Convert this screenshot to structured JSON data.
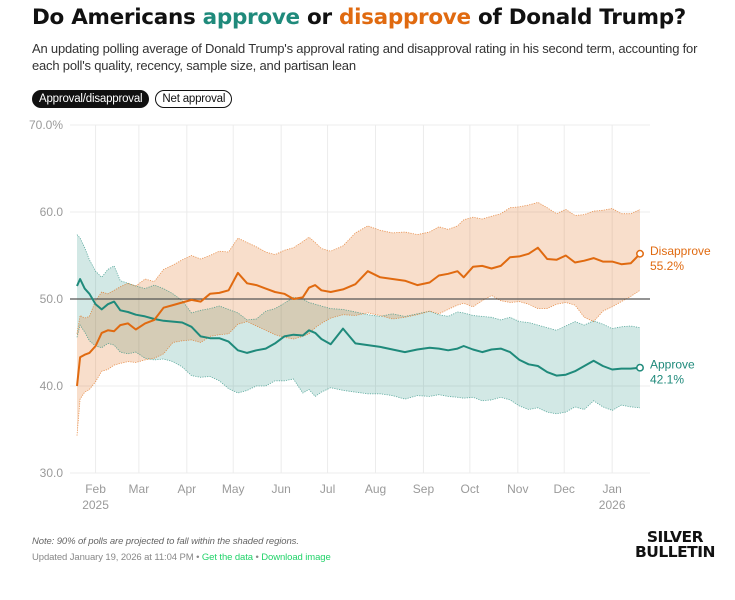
{
  "header": {
    "title_part1": "Do Americans ",
    "title_approve": "approve",
    "title_part2": " or ",
    "title_disapprove": "disapprove",
    "title_part3": " of Donald Trump?",
    "subtitle": "An updating polling average of Donald Trump's approval rating and disapproval rating in his second term, accounting for each poll's quality, recency, sample size, and partisan lean"
  },
  "toggles": [
    {
      "label": "Approval/disapproval",
      "active": true
    },
    {
      "label": "Net approval",
      "active": false
    }
  ],
  "colors": {
    "approve": "#1f8a7b",
    "disapprove": "#e06a10",
    "approve_band": "#cfe6e2",
    "disapprove_band": "#f8dcc8",
    "overlap": "#d8cdb4",
    "link": "#22d36a"
  },
  "chart_data": {
    "type": "line",
    "title": "Do Americans approve or disapprove of Donald Trump?",
    "xlabel": "",
    "ylabel": "",
    "ylim": [
      30,
      70
    ],
    "y_ticks": [
      {
        "value": 70,
        "label": "70.0%"
      },
      {
        "value": 60,
        "label": "60.0"
      },
      {
        "value": 50,
        "label": "50.0"
      },
      {
        "value": 40,
        "label": "40.0"
      },
      {
        "value": 30,
        "label": "30.0"
      }
    ],
    "x_range_days": [
      0,
      364
    ],
    "x_ticks": [
      {
        "day": 12,
        "label": "Feb",
        "sub": "2025"
      },
      {
        "day": 40,
        "label": "Mar",
        "sub": ""
      },
      {
        "day": 71,
        "label": "Apr",
        "sub": ""
      },
      {
        "day": 101,
        "label": "May",
        "sub": ""
      },
      {
        "day": 132,
        "label": "Jun",
        "sub": ""
      },
      {
        "day": 162,
        "label": "Jul",
        "sub": ""
      },
      {
        "day": 193,
        "label": "Aug",
        "sub": ""
      },
      {
        "day": 224,
        "label": "Sep",
        "sub": ""
      },
      {
        "day": 254,
        "label": "Oct",
        "sub": ""
      },
      {
        "day": 285,
        "label": "Nov",
        "sub": ""
      },
      {
        "day": 315,
        "label": "Dec",
        "sub": ""
      },
      {
        "day": 346,
        "label": "Jan",
        "sub": "2026"
      }
    ],
    "reference_line": 50,
    "x_start_date": "2025-01-20",
    "grid": true,
    "note_shaded": "90% of polls projected to fall within shaded regions",
    "series": [
      {
        "name": "Approve",
        "final_label": "42.1%",
        "days": [
          0,
          2,
          5,
          8,
          12,
          16,
          20,
          24,
          28,
          33,
          38,
          44,
          50,
          56,
          62,
          68,
          74,
          80,
          86,
          92,
          98,
          104,
          110,
          116,
          122,
          128,
          134,
          140,
          146,
          150,
          154,
          158,
          164,
          172,
          180,
          188,
          196,
          204,
          212,
          220,
          228,
          234,
          240,
          246,
          250,
          256,
          262,
          268,
          274,
          280,
          286,
          292,
          298,
          304,
          310,
          316,
          322,
          328,
          334,
          340,
          346,
          352,
          358,
          364
        ],
        "values": [
          51.5,
          52.3,
          51.2,
          50.6,
          49.4,
          48.8,
          49.4,
          49.7,
          48.7,
          48.5,
          48.2,
          48.0,
          47.7,
          47.5,
          47.4,
          47.3,
          46.8,
          45.7,
          45.5,
          45.5,
          45.1,
          44.1,
          43.8,
          44.1,
          44.3,
          44.9,
          45.7,
          45.9,
          45.8,
          46.4,
          46.1,
          45.4,
          44.8,
          46.6,
          44.9,
          44.7,
          44.5,
          44.2,
          43.9,
          44.2,
          44.4,
          44.3,
          44.1,
          44.3,
          44.6,
          44.2,
          43.9,
          44.2,
          44.3,
          43.9,
          43.0,
          42.5,
          42.3,
          41.6,
          41.2,
          41.3,
          41.7,
          42.3,
          42.9,
          42.3,
          41.9,
          42.0,
          42.0,
          42.1
        ],
        "upper": [
          57.4,
          57.0,
          55.9,
          54.5,
          53.2,
          52.5,
          53.4,
          53.8,
          52.1,
          51.8,
          51.5,
          51.2,
          51.6,
          51.2,
          50.6,
          49.8,
          48.4,
          48.7,
          48.9,
          49.2,
          48.8,
          48.4,
          47.6,
          47.7,
          48.6,
          48.9,
          49.5,
          50.2,
          50.0,
          49.6,
          49.4,
          49.2,
          48.9,
          48.8,
          48.5,
          48.2,
          48.0,
          48.3,
          48.0,
          48.3,
          48.6,
          48.2,
          48.0,
          48.5,
          48.4,
          48.1,
          48.0,
          47.9,
          47.6,
          47.9,
          47.4,
          47.3,
          47.0,
          46.7,
          46.4,
          46.9,
          47.4,
          47.0,
          47.5,
          47.1,
          46.6,
          46.8,
          46.9,
          46.7
        ],
        "lower": [
          45.6,
          47.0,
          46.2,
          45.2,
          44.6,
          44.4,
          44.9,
          44.7,
          43.9,
          43.7,
          43.9,
          43.2,
          43.0,
          43.1,
          42.8,
          42.2,
          41.2,
          41.0,
          41.1,
          40.6,
          39.7,
          39.2,
          39.5,
          40.0,
          40.0,
          40.6,
          40.6,
          40.8,
          39.2,
          39.6,
          38.8,
          39.3,
          39.8,
          39.5,
          39.3,
          39.1,
          39.1,
          38.9,
          38.5,
          38.9,
          38.8,
          39.0,
          38.8,
          38.7,
          38.6,
          38.7,
          38.3,
          38.4,
          38.7,
          38.4,
          37.7,
          37.3,
          37.5,
          37.0,
          36.8,
          37.0,
          37.6,
          37.3,
          38.3,
          37.6,
          37.2,
          37.8,
          37.6,
          37.5
        ]
      },
      {
        "name": "Disapprove",
        "final_label": "55.2%",
        "days": [
          0,
          2,
          5,
          8,
          12,
          16,
          20,
          24,
          28,
          33,
          38,
          44,
          50,
          56,
          62,
          68,
          74,
          80,
          86,
          92,
          98,
          104,
          110,
          116,
          122,
          128,
          134,
          140,
          146,
          150,
          154,
          158,
          164,
          172,
          180,
          188,
          196,
          204,
          212,
          220,
          228,
          234,
          240,
          246,
          250,
          256,
          262,
          268,
          274,
          280,
          286,
          292,
          298,
          304,
          310,
          316,
          322,
          328,
          334,
          340,
          346,
          352,
          358,
          364
        ],
        "values": [
          40.0,
          43.3,
          43.6,
          43.8,
          44.6,
          46.1,
          46.4,
          46.3,
          47.0,
          47.2,
          46.5,
          47.2,
          47.6,
          49.0,
          49.3,
          49.6,
          49.9,
          49.7,
          50.6,
          50.7,
          51.0,
          53.0,
          51.8,
          51.6,
          51.2,
          50.8,
          50.6,
          50.0,
          50.2,
          51.3,
          51.6,
          51.0,
          50.8,
          51.1,
          51.7,
          53.2,
          52.5,
          52.3,
          52.1,
          51.6,
          51.9,
          52.7,
          52.9,
          53.2,
          52.5,
          53.7,
          53.8,
          53.5,
          53.8,
          54.8,
          54.9,
          55.2,
          55.9,
          54.6,
          54.5,
          55.0,
          54.2,
          54.4,
          54.7,
          54.3,
          54.3,
          54.0,
          54.1,
          55.2
        ],
        "upper": [
          46.0,
          48.1,
          47.8,
          48.0,
          49.8,
          50.8,
          50.6,
          51.0,
          51.4,
          51.8,
          51.5,
          52.3,
          52.0,
          53.4,
          53.9,
          54.5,
          55.0,
          54.6,
          55.0,
          55.5,
          55.4,
          57.0,
          56.5,
          56.0,
          55.4,
          55.1,
          55.6,
          55.9,
          56.6,
          57.1,
          56.5,
          55.8,
          55.5,
          56.1,
          57.6,
          58.4,
          57.9,
          57.6,
          57.7,
          57.4,
          57.7,
          58.3,
          58.0,
          58.4,
          59.1,
          59.4,
          59.2,
          59.5,
          59.8,
          60.5,
          60.6,
          60.8,
          61.1,
          60.5,
          59.8,
          60.3,
          59.6,
          59.7,
          60.1,
          60.2,
          60.4,
          59.8,
          59.8,
          60.3
        ],
        "lower": [
          34.3,
          38.5,
          39.3,
          39.6,
          40.5,
          41.7,
          41.9,
          42.4,
          42.6,
          42.8,
          42.7,
          43.0,
          43.2,
          43.7,
          45.0,
          45.2,
          45.3,
          45.0,
          45.7,
          45.9,
          46.0,
          47.1,
          47.4,
          46.9,
          46.4,
          45.9,
          45.6,
          45.4,
          45.7,
          46.0,
          46.7,
          47.2,
          47.8,
          48.2,
          48.1,
          48.4,
          48.1,
          47.7,
          47.9,
          48.2,
          48.6,
          48.3,
          48.8,
          49.3,
          49.5,
          49.1,
          49.8,
          50.4,
          49.8,
          49.6,
          49.7,
          49.4,
          48.9,
          48.9,
          49.4,
          49.6,
          49.3,
          47.9,
          47.4,
          48.6,
          49.1,
          49.7,
          50.3,
          51.0
        ]
      }
    ]
  },
  "footer": {
    "note": "Note: 90% of polls are projected to fall within the shaded regions.",
    "updated": "Updated January 19, 2026 at 11:04 PM",
    "separator": " • ",
    "get_data": "Get the data",
    "download_image": "Download image",
    "logo_line1": "SILVER",
    "logo_line2": "BULLETIN"
  }
}
